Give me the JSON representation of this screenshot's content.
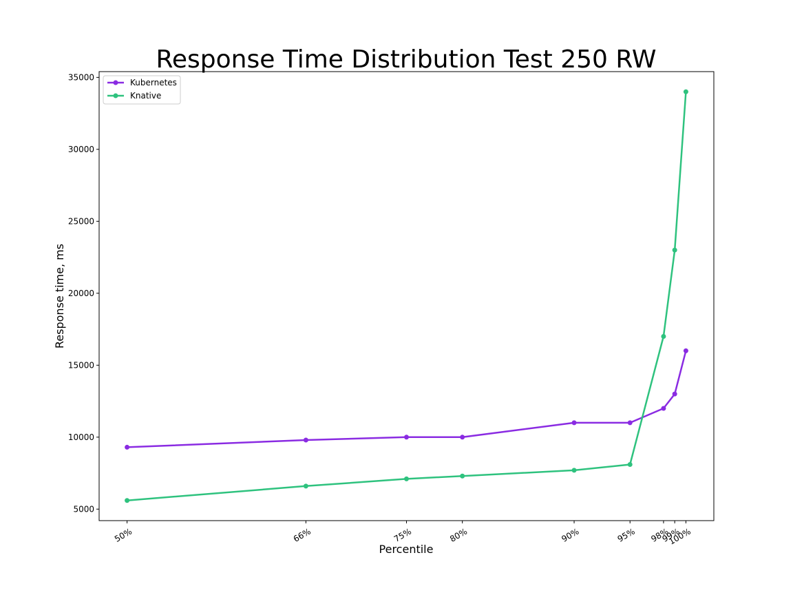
{
  "chart_data": {
    "type": "line",
    "title": "Response Time Distribution Test 250 RW",
    "xlabel": "Percentile",
    "ylabel": "Response time, ms",
    "x": [
      50,
      66,
      75,
      80,
      90,
      95,
      98,
      99,
      100
    ],
    "x_tick_labels": [
      "50%",
      "66%",
      "75%",
      "80%",
      "90%",
      "95%",
      "98%",
      "99%",
      "100%"
    ],
    "y_ticks": [
      5000,
      10000,
      15000,
      20000,
      25000,
      30000,
      35000
    ],
    "xlim": [
      47.5,
      102.5
    ],
    "ylim": [
      4200,
      35400
    ],
    "grid": false,
    "legend": "top-left",
    "series": [
      {
        "name": "Kubernetes",
        "color": "#8a2be2",
        "values": [
          9300,
          9800,
          10000,
          10000,
          11000,
          11000,
          12000,
          13000,
          16000
        ]
      },
      {
        "name": "Knative",
        "color": "#2ec27e",
        "values": [
          5600,
          6600,
          7100,
          7300,
          7700,
          8100,
          17000,
          23000,
          34000
        ]
      }
    ]
  }
}
